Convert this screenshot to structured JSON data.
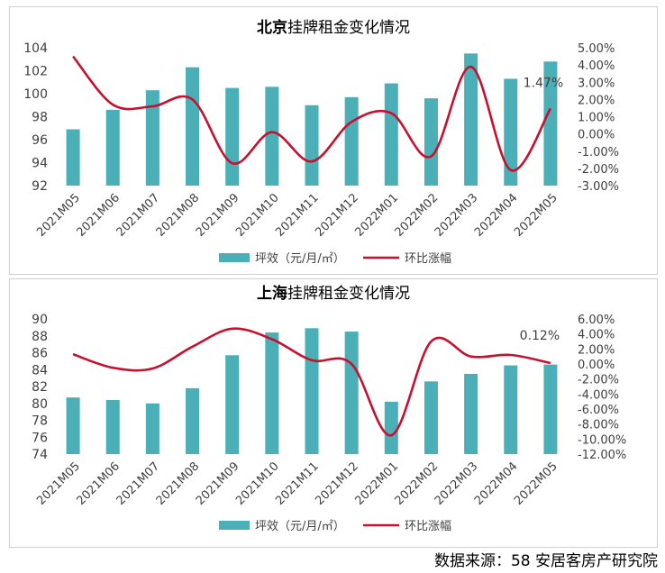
{
  "chart_data": [
    {
      "type": "bar",
      "title_bold": "北京",
      "title_rest": "挂牌租金变化情况",
      "categories": [
        "2021M05",
        "2021M06",
        "2021M07",
        "2021M08",
        "2021M09",
        "2021M10",
        "2021M11",
        "2021M12",
        "2022M01",
        "2022M02",
        "2022M03",
        "2022M04",
        "2022M05"
      ],
      "series": [
        {
          "name": "坪效（元/月/㎡）",
          "kind": "bar",
          "axis": "left",
          "color": "#4BAFB8",
          "values": [
            96.9,
            98.6,
            100.3,
            102.3,
            100.5,
            100.6,
            99.0,
            99.7,
            100.9,
            99.6,
            103.5,
            101.3,
            102.8
          ]
        },
        {
          "name": "环比涨幅",
          "kind": "line",
          "axis": "right",
          "color": "#C8102E",
          "values": [
            4.5,
            1.7,
            1.6,
            2.0,
            -1.7,
            0.1,
            -1.6,
            0.7,
            1.2,
            -1.3,
            3.9,
            -2.1,
            1.47
          ]
        }
      ],
      "left_axis": {
        "min": 92,
        "max": 104,
        "step": 2,
        "ticks": [
          "92",
          "94",
          "96",
          "98",
          "100",
          "102",
          "104"
        ]
      },
      "right_axis": {
        "min": -3,
        "max": 5,
        "step": 1,
        "ticks": [
          "-3.00%",
          "-2.00%",
          "-1.00%",
          "0.00%",
          "1.00%",
          "2.00%",
          "3.00%",
          "4.00%",
          "5.00%"
        ]
      },
      "last_label": "1.47%",
      "legend": [
        "坪效（元/月/㎡）",
        "环比涨幅"
      ],
      "legend_position": "bottom"
    },
    {
      "type": "bar",
      "title_bold": "上海",
      "title_rest": "挂牌租金变化情况",
      "categories": [
        "2021M05",
        "2021M06",
        "2021M07",
        "2021M08",
        "2021M09",
        "2021M10",
        "2021M11",
        "2021M12",
        "2022M01",
        "2022M02",
        "2022M03",
        "2022M04",
        "2022M05"
      ],
      "series": [
        {
          "name": "坪效（元/月/㎡）",
          "kind": "bar",
          "axis": "left",
          "color": "#4BAFB8",
          "values": [
            80.7,
            80.4,
            80.0,
            81.8,
            85.7,
            88.4,
            88.9,
            88.5,
            80.2,
            82.6,
            83.5,
            84.5,
            84.6
          ]
        },
        {
          "name": "环比涨幅",
          "kind": "line",
          "axis": "right",
          "color": "#C8102E",
          "values": [
            1.3,
            -0.5,
            -0.6,
            2.3,
            4.7,
            3.3,
            0.5,
            0.0,
            -9.5,
            3.0,
            1.0,
            1.2,
            0.12
          ]
        }
      ],
      "left_axis": {
        "min": 74,
        "max": 90,
        "step": 2,
        "ticks": [
          "74",
          "76",
          "78",
          "80",
          "82",
          "84",
          "86",
          "88",
          "90"
        ]
      },
      "right_axis": {
        "min": -12,
        "max": 6,
        "step": 2,
        "ticks": [
          "-12.00%",
          "-10.00%",
          "-8.00%",
          "-6.00%",
          "-4.00%",
          "-2.00%",
          "0.00%",
          "2.00%",
          "4.00%",
          "6.00%"
        ]
      },
      "last_label": "0.12%",
      "legend": [
        "坪效（元/月/㎡）",
        "环比涨幅"
      ],
      "legend_position": "bottom"
    }
  ],
  "source": "数据来源：58 安居客房产研究院"
}
